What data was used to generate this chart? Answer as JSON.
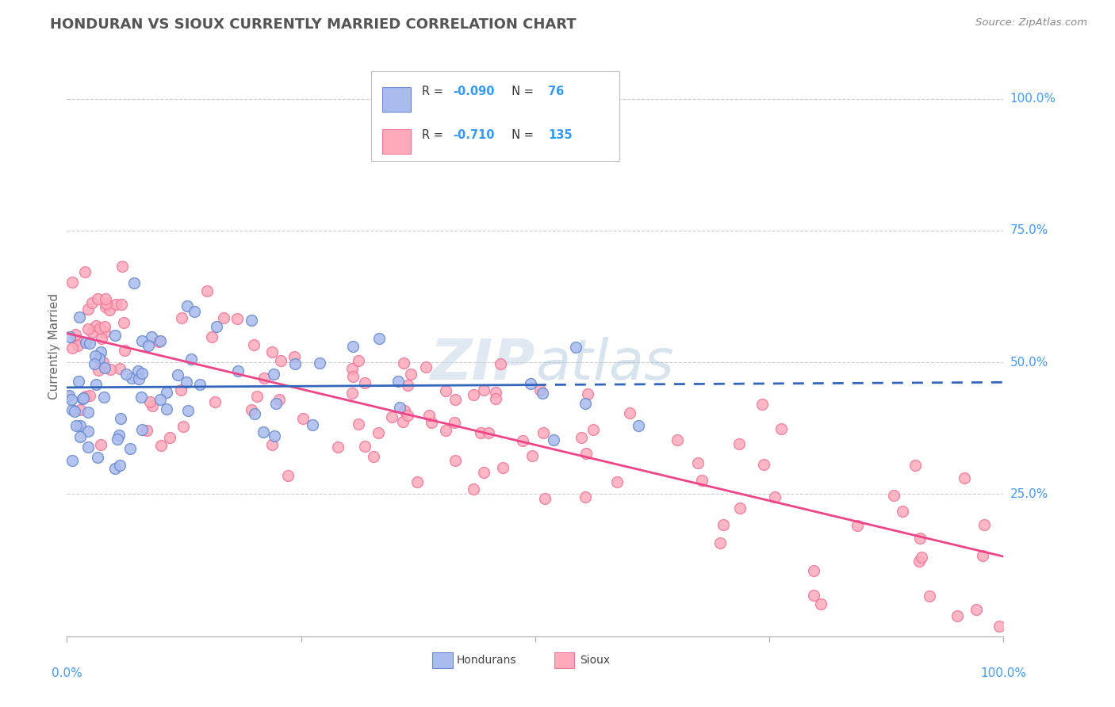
{
  "title": "HONDURAN VS SIOUX CURRENTLY MARRIED CORRELATION CHART",
  "source": "Source: ZipAtlas.com",
  "ylabel": "Currently Married",
  "honduran_R": -0.09,
  "honduran_N": 76,
  "sioux_R": -0.71,
  "sioux_N": 135,
  "honduran_fill": "#AABBEE",
  "honduran_edge": "#6688CC",
  "sioux_fill": "#FFAABB",
  "sioux_edge": "#EE7799",
  "honduran_line_color": "#3366BB",
  "sioux_line_color": "#EE4488",
  "background_color": "#FFFFFF",
  "title_color": "#555555",
  "axis_label_color": "#4499FF",
  "grid_color": "#CCCCCC",
  "legend_text_color": "#333333",
  "legend_value_color": "#3399FF",
  "watermark_color": "#CCDDEE",
  "x_range": [
    0.0,
    1.0
  ],
  "y_range": [
    -0.02,
    1.08
  ],
  "y_tick_positions": [
    0.25,
    0.5,
    0.75,
    1.0
  ],
  "y_tick_labels": [
    "25.0%",
    "50.0%",
    "75.0%",
    "100.0%"
  ]
}
